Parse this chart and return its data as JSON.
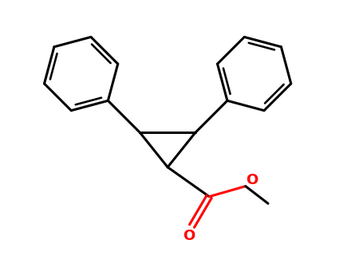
{
  "bg_color": "#ffffff",
  "bond_color": "#000000",
  "oxygen_color": "#ff0000",
  "line_width": 2.2,
  "figsize": [
    4.55,
    3.5
  ],
  "dpi": 100
}
